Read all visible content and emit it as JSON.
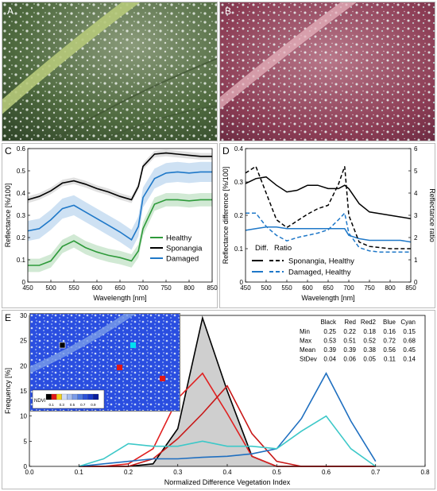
{
  "panels": {
    "A": "A",
    "B": "B",
    "C": "C",
    "D": "D",
    "E": "E"
  },
  "chart_data": [
    {
      "panel": "C",
      "type": "line",
      "xlabel": "Wavelength [nm]",
      "ylabel": "Reflectance [%/100]",
      "xlim": [
        450,
        850
      ],
      "ylim": [
        0,
        0.6
      ],
      "xticks": [
        450,
        500,
        550,
        600,
        650,
        700,
        750,
        800,
        850
      ],
      "yticks": [
        0,
        0.1,
        0.2,
        0.3,
        0.4,
        0.5,
        0.6
      ],
      "yticklabels": [
        "0",
        "0.1",
        "0.2",
        "0.3",
        "0.4",
        "0.5",
        "0.6"
      ],
      "legend": "bottom-right",
      "x": [
        450,
        475,
        500,
        525,
        550,
        575,
        600,
        625,
        650,
        675,
        690,
        700,
        725,
        750,
        775,
        800,
        825,
        850
      ],
      "series": [
        {
          "name": "Healthy",
          "color": "#2e9a3a",
          "band": 0.03,
          "values": [
            0.075,
            0.075,
            0.095,
            0.16,
            0.185,
            0.155,
            0.135,
            0.12,
            0.11,
            0.095,
            0.14,
            0.24,
            0.35,
            0.37,
            0.37,
            0.365,
            0.37,
            0.37
          ]
        },
        {
          "name": "Sponangia",
          "color": "#000000",
          "band": 0.015,
          "values": [
            0.37,
            0.385,
            0.41,
            0.445,
            0.455,
            0.44,
            0.42,
            0.405,
            0.385,
            0.37,
            0.43,
            0.52,
            0.575,
            0.58,
            0.575,
            0.57,
            0.565,
            0.565
          ]
        },
        {
          "name": "Damaged",
          "color": "#1f78c8",
          "band": 0.045,
          "values": [
            0.23,
            0.24,
            0.28,
            0.33,
            0.345,
            0.315,
            0.285,
            0.255,
            0.225,
            0.19,
            0.25,
            0.38,
            0.465,
            0.49,
            0.495,
            0.49,
            0.495,
            0.495
          ]
        }
      ]
    },
    {
      "panel": "D",
      "type": "line",
      "xlabel": "Wavelength [nm]",
      "ylabel": "Reflectance difference [%/100]",
      "ylabel_right": "Reflectance ratio",
      "xlim": [
        450,
        850
      ],
      "ylim": [
        0,
        0.4
      ],
      "ylim_right": [
        0,
        6
      ],
      "xticks": [
        450,
        500,
        550,
        600,
        650,
        700,
        750,
        800,
        850
      ],
      "yticks": [
        0,
        0.1,
        0.2,
        0.3,
        0.4
      ],
      "yticklabels": [
        "0",
        "0.1",
        "0.2",
        "0.3",
        "0.4"
      ],
      "yticks_right": [
        0,
        1,
        2,
        3,
        4,
        5,
        6
      ],
      "legend_header": [
        "Diff.",
        "Ratio"
      ],
      "legend": "bottom-center",
      "x": [
        450,
        475,
        500,
        525,
        550,
        575,
        600,
        625,
        650,
        675,
        690,
        700,
        725,
        750,
        775,
        800,
        825,
        850
      ],
      "series": [
        {
          "name": "Sponangia, Healthy (Diff.)",
          "color": "#000000",
          "style": "solid",
          "values": [
            0.295,
            0.31,
            0.315,
            0.29,
            0.27,
            0.275,
            0.29,
            0.29,
            0.28,
            0.28,
            0.29,
            0.28,
            0.235,
            0.21,
            0.205,
            0.2,
            0.195,
            0.19
          ]
        },
        {
          "name": "Damaged, Healthy (Diff.)",
          "color": "#1f78c8",
          "style": "solid",
          "values": [
            0.155,
            0.16,
            0.165,
            0.165,
            0.16,
            0.16,
            0.16,
            0.16,
            0.16,
            0.16,
            0.16,
            0.14,
            0.13,
            0.125,
            0.125,
            0.125,
            0.125,
            0.12
          ]
        },
        {
          "name": "Sponangia, Healthy (Ratio)",
          "color": "#000000",
          "style": "dashed",
          "axis": "right",
          "values": [
            4.9,
            5.2,
            4.0,
            2.8,
            2.45,
            2.75,
            3.05,
            3.3,
            3.45,
            4.4,
            5.2,
            3.0,
            1.8,
            1.6,
            1.55,
            1.5,
            1.5,
            1.5
          ]
        },
        {
          "name": "Damaged, Healthy (Ratio)",
          "color": "#1f78c8",
          "style": "dashed",
          "axis": "right",
          "values": [
            3.1,
            3.1,
            2.5,
            2.1,
            1.85,
            2.0,
            2.1,
            2.2,
            2.35,
            2.8,
            3.1,
            2.2,
            1.55,
            1.4,
            1.35,
            1.35,
            1.35,
            1.35
          ]
        }
      ]
    },
    {
      "panel": "E",
      "type": "line",
      "xlabel": "Normalized Difference Vegetation Index",
      "ylabel": "Frequency [%]",
      "xlim": [
        0,
        0.8
      ],
      "ylim": [
        0,
        30
      ],
      "xticks": [
        0,
        0.1,
        0.2,
        0.3,
        0.4,
        0.5,
        0.6,
        0.7,
        0.8
      ],
      "xticklabels": [
        "0.0",
        "0.1",
        "0.2",
        "0.3",
        "0.4",
        "0.5",
        "0.6",
        "0.7",
        "0.8"
      ],
      "yticks": [
        0,
        5,
        10,
        15,
        20,
        25,
        30
      ],
      "x": [
        0.1,
        0.15,
        0.2,
        0.25,
        0.3,
        0.35,
        0.4,
        0.45,
        0.5,
        0.55,
        0.6,
        0.65,
        0.7
      ],
      "series": [
        {
          "name": "Black",
          "color": "#000000",
          "fill": "#cfcfcf",
          "values": [
            0,
            0,
            0,
            0.5,
            7.5,
            29.5,
            15.0,
            2.0,
            0,
            0,
            0,
            0,
            0
          ]
        },
        {
          "name": "Red",
          "color": "#e02020",
          "values": [
            0,
            0,
            0.5,
            3.5,
            13.5,
            18.5,
            10.5,
            2.0,
            0,
            0,
            0,
            0,
            0
          ]
        },
        {
          "name": "Red2",
          "color": "#c81818",
          "values": [
            0,
            0,
            0,
            1.5,
            5.5,
            10.5,
            16.0,
            6.5,
            1.0,
            0,
            0,
            0,
            0
          ]
        },
        {
          "name": "Blue",
          "color": "#1f6fc0",
          "values": [
            0,
            0.5,
            1.0,
            1.5,
            1.5,
            1.8,
            2.0,
            2.5,
            3.5,
            9.5,
            18.5,
            9.0,
            1.0
          ]
        },
        {
          "name": "Cyan",
          "color": "#3cc8c8",
          "values": [
            0,
            1.5,
            4.5,
            4.0,
            4.0,
            5.0,
            4.0,
            4.0,
            3.5,
            7.0,
            10.0,
            3.5,
            0
          ]
        }
      ],
      "stats_table": {
        "columns": [
          "",
          "Black",
          "Red",
          "Red2",
          "Blue",
          "Cyan"
        ],
        "rows": [
          [
            "Min",
            "0.25",
            "0.22",
            "0.18",
            "0.16",
            "0.15"
          ],
          [
            "Max",
            "0.53",
            "0.51",
            "0.52",
            "0.72",
            "0.68"
          ],
          [
            "Mean",
            "0.39",
            "0.39",
            "0.38",
            "0.56",
            "0.45"
          ],
          [
            "StDev",
            "0.04",
            "0.06",
            "0.05",
            "0.11",
            "0.14"
          ]
        ]
      },
      "inset": {
        "colorbar_label": "NDVI",
        "colorbar_ticks": [
          "0.1",
          "0.3",
          "0.5",
          "0.7",
          "0.9"
        ]
      }
    }
  ]
}
